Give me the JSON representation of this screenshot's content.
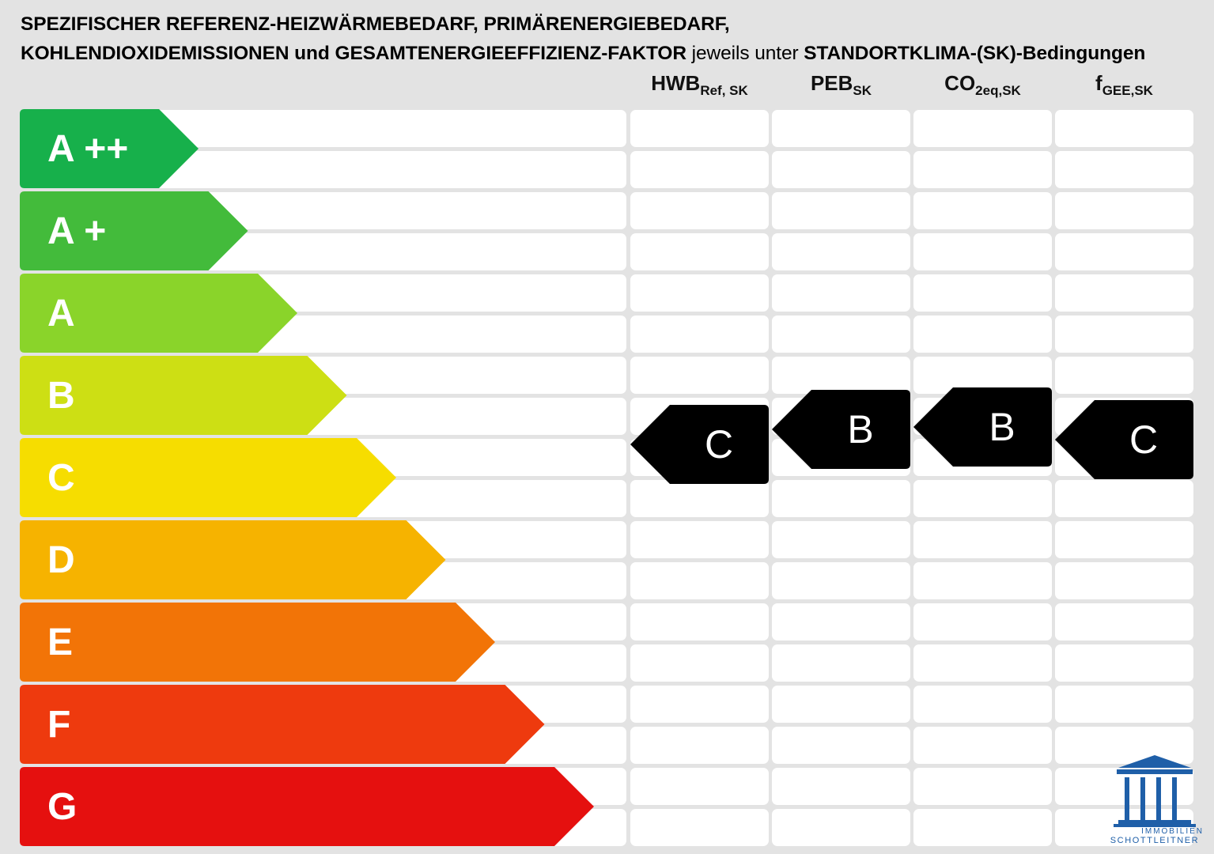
{
  "title": {
    "line1": "SPEZIFISCHER REFERENZ-HEIZWÄRMEBEDARF, PRIMÄRENERGIEBEDARF,",
    "line2_bold1": "KOHLENDIOXIDEMISSIONEN und GESAMTENERGIEEFFIZIENZ-FAKTOR",
    "line2_normal": " jeweils unter ",
    "line2_bold2": "STANDORTKLIMA-(SK)-Bedingungen"
  },
  "columns": [
    {
      "main": "HWB",
      "sub": "Ref, SK"
    },
    {
      "main": "PEB",
      "sub": "SK"
    },
    {
      "main": "CO",
      "sub": "2eq,SK"
    },
    {
      "main": "f",
      "sub": "GEE,SK"
    }
  ],
  "classes": [
    {
      "label": "A ++",
      "color": "#17b04b"
    },
    {
      "label": "A +",
      "color": "#43bb3b"
    },
    {
      "label": "A",
      "color": "#8ad42a"
    },
    {
      "label": "B",
      "color": "#cddf14"
    },
    {
      "label": "C",
      "color": "#f6dd00"
    },
    {
      "label": "D",
      "color": "#f6b300"
    },
    {
      "label": "E",
      "color": "#f27407"
    },
    {
      "label": "F",
      "color": "#ee3a0e"
    },
    {
      "label": "G",
      "color": "#e5100f"
    }
  ],
  "ratings": {
    "hwb": "C",
    "peb": "B",
    "co2": "B",
    "fgee": "C"
  },
  "logo": {
    "line1": "IMMOBILIEN",
    "line2": "SCHOTTLEITNER",
    "color": "#1f5fa8"
  }
}
